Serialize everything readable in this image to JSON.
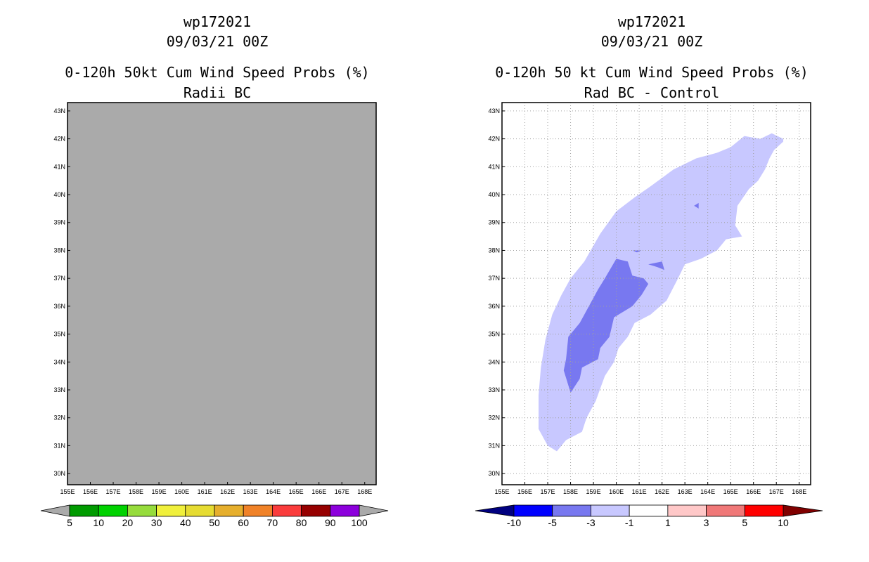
{
  "left": {
    "title1": "wp172021",
    "title2": "09/03/21 00Z",
    "title3": "0-120h 50kt Cum Wind Speed Probs (%)",
    "title4": "Radii BC",
    "fill_color": "#aaaaaa"
  },
  "right": {
    "title1": "wp172021",
    "title2": "09/03/21 00Z",
    "title3": "0-120h 50 kt Cum Wind Speed Probs (%)",
    "title4": "Rad BC - Control"
  },
  "chart_data": [
    {
      "type": "heatmap",
      "title": "0-120h 50kt Cum Wind Speed Probs (%)",
      "subtitle": "Radii BC",
      "x_ticks": [
        "155E",
        "156E",
        "157E",
        "158E",
        "159E",
        "160E",
        "161E",
        "162E",
        "163E",
        "164E",
        "165E",
        "166E",
        "167E",
        "168E"
      ],
      "y_ticks": [
        "30N",
        "31N",
        "32N",
        "33N",
        "34N",
        "35N",
        "36N",
        "37N",
        "38N",
        "39N",
        "40N",
        "41N",
        "42N",
        "43N"
      ],
      "xlim": [
        155,
        168.5
      ],
      "ylim": [
        29.6,
        43.3
      ],
      "grid": false,
      "field": "uniform gray (no probability contours above 5%)",
      "colorbar": {
        "labels": [
          "5",
          "10",
          "20",
          "30",
          "40",
          "50",
          "60",
          "70",
          "80",
          "90",
          "100"
        ],
        "colors": [
          "#009b00",
          "#00d200",
          "#96dc3c",
          "#f0f03c",
          "#e6dc32",
          "#e6af2d",
          "#f08228",
          "#fa3c3c",
          "#960000",
          "#8c00dc"
        ],
        "end_arrows": [
          "#aaaaaa",
          "#aaaaaa"
        ]
      }
    },
    {
      "type": "heatmap",
      "title": "0-120h 50 kt Cum Wind Speed Probs (%)",
      "subtitle": "Rad BC - Control",
      "x_ticks": [
        "155E",
        "156E",
        "157E",
        "158E",
        "159E",
        "160E",
        "161E",
        "162E",
        "163E",
        "164E",
        "165E",
        "166E",
        "167E",
        "168E"
      ],
      "y_ticks": [
        "30N",
        "31N",
        "32N",
        "33N",
        "34N",
        "35N",
        "36N",
        "37N",
        "38N",
        "39N",
        "40N",
        "41N",
        "42N",
        "43N"
      ],
      "xlim": [
        155,
        168.5
      ],
      "ylim": [
        29.6,
        43.3
      ],
      "grid": true,
      "contours": [
        {
          "level": "-3 to -1",
          "color": "#c8c8ff",
          "polygon": [
            [
              157.4,
              30.8
            ],
            [
              157.8,
              31.2
            ],
            [
              158.5,
              31.5
            ],
            [
              158.7,
              32.0
            ],
            [
              159.1,
              32.6
            ],
            [
              159.5,
              33.5
            ],
            [
              159.9,
              34.0
            ],
            [
              160.1,
              34.5
            ],
            [
              160.5,
              34.9
            ],
            [
              160.8,
              35.4
            ],
            [
              161.5,
              35.7
            ],
            [
              162.2,
              36.2
            ],
            [
              162.7,
              37.0
            ],
            [
              163.0,
              37.5
            ],
            [
              163.7,
              37.7
            ],
            [
              164.4,
              38.0
            ],
            [
              164.8,
              38.4
            ],
            [
              165.5,
              38.5
            ],
            [
              165.2,
              38.9
            ],
            [
              165.3,
              39.6
            ],
            [
              165.8,
              40.2
            ],
            [
              166.2,
              40.5
            ],
            [
              166.5,
              40.9
            ],
            [
              166.7,
              41.3
            ],
            [
              166.9,
              41.6
            ],
            [
              167.3,
              41.9
            ],
            [
              167.3,
              42.0
            ],
            [
              166.8,
              42.2
            ],
            [
              166.3,
              42.0
            ],
            [
              165.6,
              42.1
            ],
            [
              165.0,
              41.7
            ],
            [
              164.4,
              41.5
            ],
            [
              163.5,
              41.3
            ],
            [
              162.5,
              40.9
            ],
            [
              161.5,
              40.3
            ],
            [
              160.8,
              39.9
            ],
            [
              160.0,
              39.4
            ],
            [
              159.3,
              38.6
            ],
            [
              158.6,
              37.6
            ],
            [
              158.0,
              37.0
            ],
            [
              157.6,
              36.4
            ],
            [
              157.2,
              35.7
            ],
            [
              156.9,
              34.8
            ],
            [
              156.7,
              33.8
            ],
            [
              156.6,
              32.8
            ],
            [
              156.6,
              31.6
            ],
            [
              157.0,
              31.0
            ]
          ]
        },
        {
          "level": "-5 to -3",
          "color": "#7878f0",
          "polygon": [
            [
              158.0,
              32.9
            ],
            [
              158.4,
              33.4
            ],
            [
              158.5,
              33.8
            ],
            [
              159.2,
              34.1
            ],
            [
              159.3,
              34.5
            ],
            [
              159.7,
              34.9
            ],
            [
              159.9,
              35.6
            ],
            [
              160.7,
              36.0
            ],
            [
              161.1,
              36.4
            ],
            [
              161.4,
              36.8
            ],
            [
              161.2,
              37.0
            ],
            [
              160.7,
              37.1
            ],
            [
              160.5,
              37.6
            ],
            [
              160.0,
              37.7
            ],
            [
              159.5,
              37.0
            ],
            [
              159.2,
              36.6
            ],
            [
              158.8,
              36.0
            ],
            [
              158.4,
              35.4
            ],
            [
              157.9,
              34.9
            ],
            [
              157.8,
              34.1
            ],
            [
              157.7,
              33.7
            ]
          ]
        },
        {
          "level": "-5 to -3",
          "color": "#7878f0",
          "polygon": [
            [
              161.4,
              37.5
            ],
            [
              162.0,
              37.6
            ],
            [
              162.1,
              37.3
            ],
            [
              161.8,
              37.4
            ]
          ]
        },
        {
          "level": "-5 to -3",
          "color": "#7878f0",
          "polygon": [
            [
              160.7,
              38.0
            ],
            [
              161.1,
              38.0
            ],
            [
              160.9,
              37.93
            ]
          ]
        },
        {
          "level": "-5 to -3",
          "color": "#7878f0",
          "polygon": [
            [
              163.4,
              39.6
            ],
            [
              163.6,
              39.7
            ],
            [
              163.6,
              39.5
            ]
          ]
        }
      ],
      "colorbar": {
        "labels": [
          "-10",
          "-5",
          "-3",
          "-1",
          "1",
          "3",
          "5",
          "10"
        ],
        "colors": [
          "#0000ff",
          "#7878f0",
          "#c8c8ff",
          "#ffffff",
          "#ffc8c8",
          "#f07878",
          "#ff0000"
        ],
        "end_arrows": [
          "#000080",
          "#800000"
        ]
      }
    }
  ]
}
